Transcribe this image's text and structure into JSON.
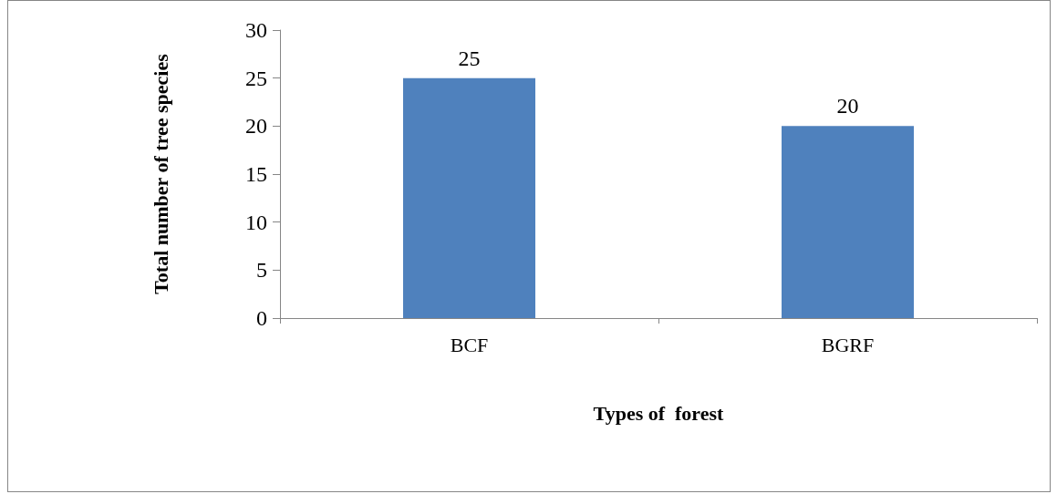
{
  "chart_data": {
    "type": "bar",
    "xlabel": "Types of  forest",
    "ylabel": "Total number of tree species",
    "categories": [
      "BCF",
      "BGRF"
    ],
    "values": [
      25,
      20
    ],
    "color": "#4f81bd",
    "ylim": [
      0,
      30
    ],
    "yticks": [
      0,
      5,
      10,
      15,
      20,
      25,
      30
    ],
    "data_labels": true
  }
}
